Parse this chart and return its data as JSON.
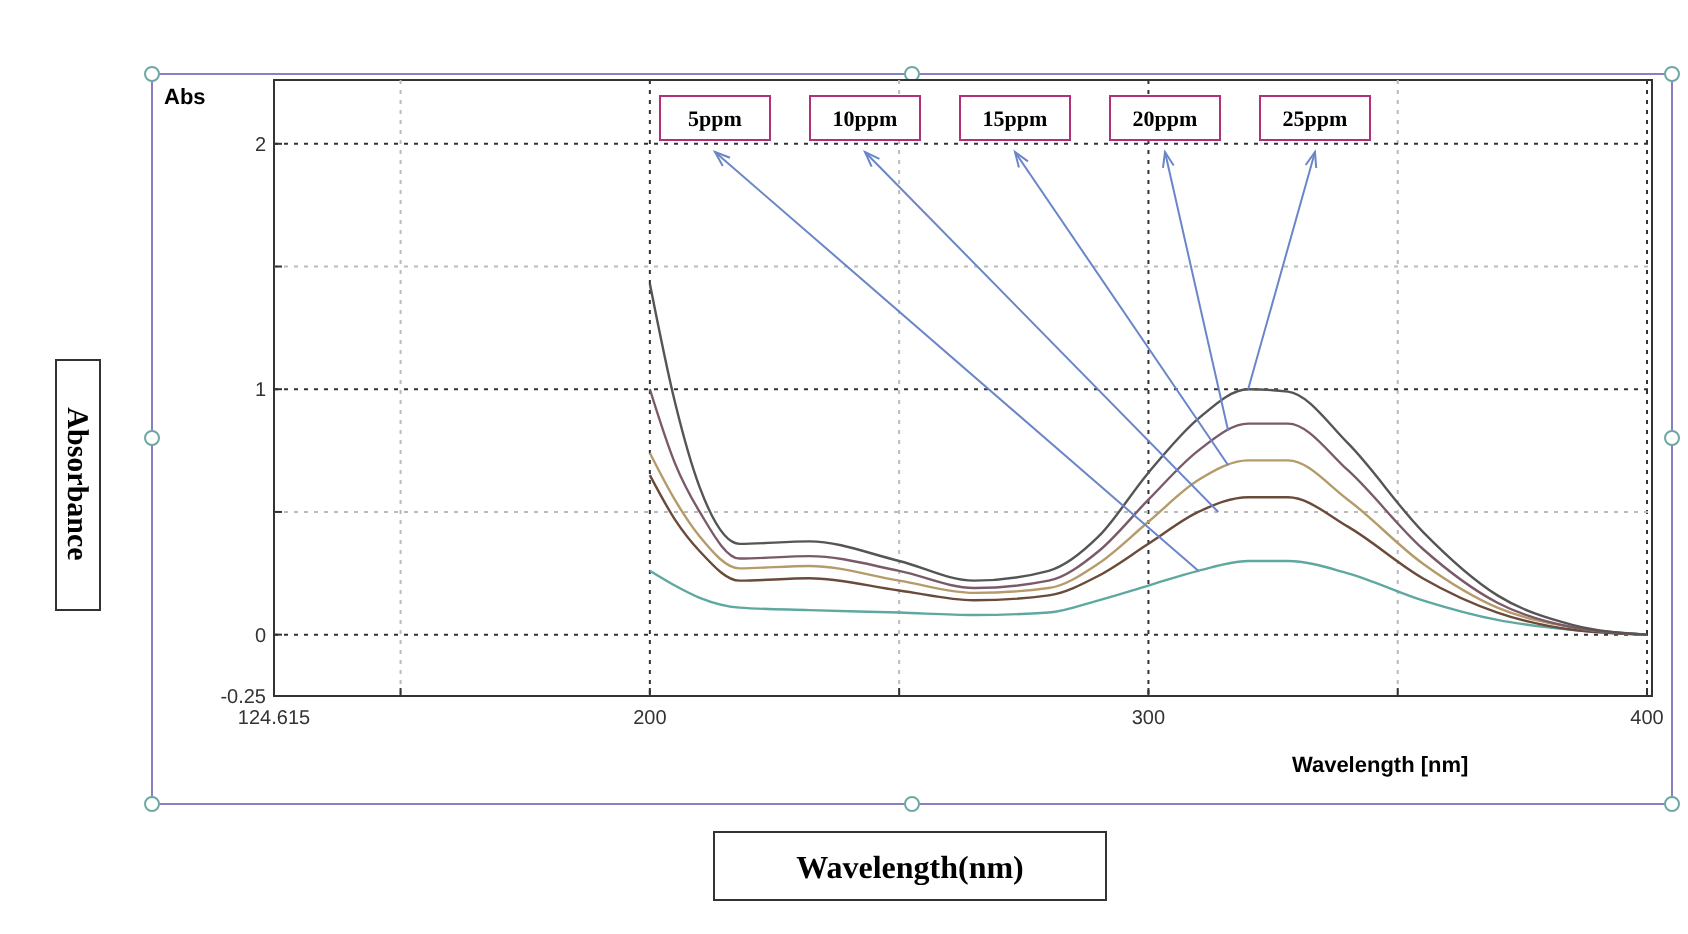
{
  "chart_data": {
    "type": "line",
    "xlabel": "Wavelength [nm]",
    "ylabel": "Abs",
    "x": [
      200,
      205,
      210,
      218,
      232,
      250,
      265,
      280,
      290,
      300,
      310,
      320,
      328,
      340,
      355,
      370,
      385,
      400
    ],
    "series": [
      {
        "color": "#5fa8a0",
        "values": [
          0.26,
          0.2,
          0.15,
          0.11,
          0.1,
          0.09,
          0.08,
          0.09,
          0.14,
          0.2,
          0.26,
          0.3,
          0.3,
          0.25,
          0.14,
          0.06,
          0.02,
          0
        ]
      },
      {
        "color": "#6a4a3a",
        "values": [
          0.65,
          0.47,
          0.34,
          0.22,
          0.23,
          0.18,
          0.14,
          0.16,
          0.24,
          0.37,
          0.5,
          0.56,
          0.56,
          0.44,
          0.23,
          0.09,
          0.02,
          0
        ]
      },
      {
        "color": "#b59b6a",
        "values": [
          0.74,
          0.55,
          0.4,
          0.27,
          0.28,
          0.22,
          0.17,
          0.19,
          0.29,
          0.46,
          0.63,
          0.71,
          0.71,
          0.55,
          0.29,
          0.11,
          0.03,
          0
        ]
      },
      {
        "color": "#7a5a6a",
        "values": [
          1.0,
          0.7,
          0.5,
          0.31,
          0.32,
          0.26,
          0.19,
          0.22,
          0.34,
          0.55,
          0.75,
          0.86,
          0.86,
          0.67,
          0.35,
          0.13,
          0.03,
          0
        ]
      },
      {
        "color": "#555555",
        "values": [
          1.43,
          0.95,
          0.6,
          0.37,
          0.38,
          0.3,
          0.22,
          0.26,
          0.4,
          0.66,
          0.88,
          1.0,
          0.99,
          0.78,
          0.42,
          0.16,
          0.04,
          0
        ]
      }
    ],
    "xlim": [
      124.615,
      401
    ],
    "xticks": [
      {
        "value": 124.615,
        "label": "124.615"
      },
      {
        "value": 150,
        "label": null
      },
      200,
      {
        "value": 250,
        "label": null
      },
      300,
      {
        "value": 350,
        "label": null
      },
      400
    ],
    "ylim": [
      -0.25,
      2.26
    ],
    "yticks": [
      -0.25,
      0,
      {
        "value": 0.5,
        "label": null
      },
      1,
      {
        "value": 1.5,
        "label": null
      },
      2
    ],
    "grid": true,
    "annotations": [
      {
        "text": "5ppm",
        "x": 310,
        "y": 0.26
      },
      {
        "text": "10ppm",
        "x": 314,
        "y": 0.5
      },
      {
        "text": "15ppm",
        "x": 316,
        "y": 0.69
      },
      {
        "text": "20ppm",
        "x": 316,
        "y": 0.83
      },
      {
        "text": "25ppm",
        "x": 320,
        "y": 1.0
      },
      "Absorbance",
      "Wavelength(nm)"
    ]
  }
}
